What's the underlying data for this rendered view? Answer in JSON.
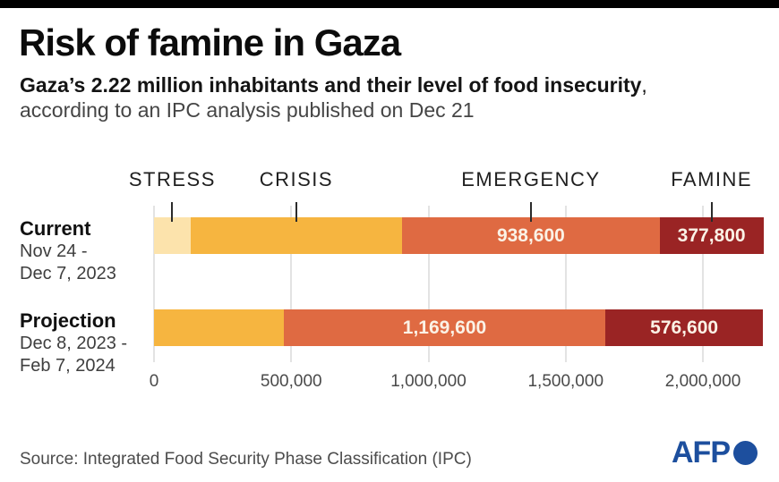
{
  "header": {
    "title": "Risk of famine in Gaza",
    "subtitle_bold": "Gaza’s 2.22 million inhabitants and their level of food insecurity",
    "subtitle_comma": ",",
    "subtitle_line2": "according to an IPC analysis published on Dec 21"
  },
  "footer": {
    "source": "Source: Integrated Food Security Phase Classification (IPC)",
    "logo_text": "AFP"
  },
  "colors": {
    "top_bar": "#000000",
    "afp_blue": "#1d4f9e",
    "grid_line": "#e3e3e3",
    "tick_line": "#2b2b2b"
  },
  "chart_data": {
    "type": "bar",
    "orientation": "horizontal",
    "stacked": true,
    "unit": "people",
    "total_population": 2220000,
    "phase_labels": [
      "STRESS",
      "CRISIS",
      "EMERGENCY",
      "FAMINE"
    ],
    "phase_colors": {
      "STRESS": "#fce3ac",
      "CRISIS": "#f6b540",
      "EMERGENCY": "#df6a42",
      "FAMINE": "#9a2424"
    },
    "x_axis": {
      "min": 0,
      "max": 2220000,
      "tick_labels": [
        "0",
        "500,000",
        "1,000,000",
        "1,500,000",
        "2,000,000"
      ],
      "tick_values": [
        0,
        500000,
        1000000,
        1500000,
        2000000
      ],
      "grid": true
    },
    "rows": [
      {
        "name": "Current",
        "period_line1": "Nov 24 -",
        "period_line2": "Dec 7, 2023",
        "segments": [
          {
            "phase": "STRESS",
            "value": 133000,
            "label": ""
          },
          {
            "phase": "CRISIS",
            "value": 771000,
            "label": ""
          },
          {
            "phase": "EMERGENCY",
            "value": 938600,
            "label": "938,600"
          },
          {
            "phase": "FAMINE",
            "value": 377800,
            "label": "377,800"
          }
        ]
      },
      {
        "name": "Projection",
        "period_line1": "Dec 8, 2023 -",
        "period_line2": "Feb 7, 2024",
        "segments": [
          {
            "phase": "CRISIS",
            "value": 474000,
            "label": ""
          },
          {
            "phase": "EMERGENCY",
            "value": 1169600,
            "label": "1,169,600"
          },
          {
            "phase": "FAMINE",
            "value": 576600,
            "label": "576,600"
          }
        ]
      }
    ]
  }
}
